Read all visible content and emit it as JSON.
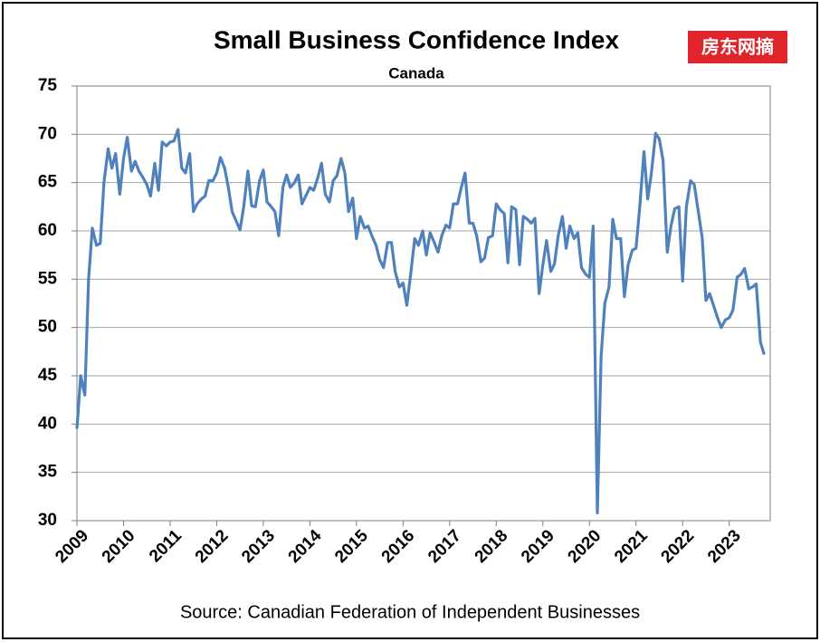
{
  "chart_data": {
    "type": "line",
    "title": "Small Business Confidence Index",
    "subtitle": "Canada",
    "source": "Source: Canadian Federation of Independent Businesses",
    "watermark": "房东网摘",
    "color": "#4f81bd",
    "grid": true,
    "xlim": [
      2009,
      2023.88
    ],
    "xticks": [
      2009,
      2010,
      2011,
      2012,
      2013,
      2014,
      2015,
      2016,
      2017,
      2018,
      2019,
      2020,
      2021,
      2022,
      2023
    ],
    "ylim": [
      30,
      75
    ],
    "yticks": [
      30,
      35,
      40,
      45,
      50,
      55,
      60,
      65,
      70,
      75
    ],
    "x": [
      2009.0,
      2009.08,
      2009.17,
      2009.25,
      2009.33,
      2009.42,
      2009.5,
      2009.58,
      2009.67,
      2009.75,
      2009.83,
      2009.92,
      2010.0,
      2010.08,
      2010.17,
      2010.25,
      2010.33,
      2010.42,
      2010.5,
      2010.58,
      2010.67,
      2010.75,
      2010.83,
      2010.92,
      2011.0,
      2011.08,
      2011.17,
      2011.25,
      2011.33,
      2011.42,
      2011.5,
      2011.58,
      2011.67,
      2011.75,
      2011.83,
      2011.92,
      2012.0,
      2012.08,
      2012.17,
      2012.25,
      2012.33,
      2012.42,
      2012.5,
      2012.58,
      2012.67,
      2012.75,
      2012.83,
      2012.92,
      2013.0,
      2013.08,
      2013.17,
      2013.25,
      2013.33,
      2013.42,
      2013.5,
      2013.58,
      2013.67,
      2013.75,
      2013.83,
      2013.92,
      2014.0,
      2014.08,
      2014.17,
      2014.25,
      2014.33,
      2014.42,
      2014.5,
      2014.58,
      2014.67,
      2014.75,
      2014.83,
      2014.92,
      2015.0,
      2015.08,
      2015.17,
      2015.25,
      2015.33,
      2015.42,
      2015.5,
      2015.58,
      2015.67,
      2015.75,
      2015.83,
      2015.92,
      2016.0,
      2016.08,
      2016.17,
      2016.25,
      2016.33,
      2016.42,
      2016.5,
      2016.58,
      2016.67,
      2016.75,
      2016.83,
      2016.92,
      2017.0,
      2017.08,
      2017.17,
      2017.25,
      2017.33,
      2017.42,
      2017.5,
      2017.58,
      2017.67,
      2017.75,
      2017.83,
      2017.92,
      2018.0,
      2018.08,
      2018.17,
      2018.25,
      2018.33,
      2018.42,
      2018.5,
      2018.58,
      2018.67,
      2018.75,
      2018.83,
      2018.92,
      2019.0,
      2019.08,
      2019.17,
      2019.25,
      2019.33,
      2019.42,
      2019.5,
      2019.58,
      2019.67,
      2019.75,
      2019.83,
      2019.92,
      2020.0,
      2020.08,
      2020.17,
      2020.25,
      2020.33,
      2020.42,
      2020.5,
      2020.58,
      2020.67,
      2020.75,
      2020.83,
      2020.92,
      2021.0,
      2021.08,
      2021.17,
      2021.25,
      2021.33,
      2021.42,
      2021.5,
      2021.58,
      2021.67,
      2021.75,
      2021.83,
      2021.92,
      2022.0,
      2022.08,
      2022.17,
      2022.25,
      2022.33,
      2022.42,
      2022.5,
      2022.58,
      2022.67,
      2022.75,
      2022.83,
      2022.92,
      2023.0,
      2023.08,
      2023.17,
      2023.25,
      2023.33,
      2023.42,
      2023.5,
      2023.58,
      2023.67,
      2023.75
    ],
    "values": [
      39.5,
      45,
      43,
      55,
      60.3,
      58.5,
      58.7,
      65,
      68.5,
      66.5,
      68,
      63.8,
      67.5,
      69.7,
      66.2,
      67.2,
      66.2,
      65.5,
      64.8,
      63.6,
      67,
      64.2,
      69.2,
      68.8,
      69.2,
      69.3,
      70.5,
      66.5,
      66,
      68,
      62,
      62.8,
      63.3,
      63.6,
      65.2,
      65.2,
      66,
      67.6,
      66.5,
      64.5,
      62,
      61,
      60.1,
      62.5,
      66.2,
      62.6,
      62.5,
      65.2,
      66.3,
      63,
      62.5,
      62,
      59.5,
      64.5,
      65.8,
      64.5,
      65,
      65.8,
      62.8,
      63.7,
      64.5,
      64.2,
      65.5,
      67,
      63.8,
      63,
      65.2,
      65.7,
      67.5,
      66,
      62,
      63.4,
      59.2,
      61.5,
      60.3,
      60.5,
      59.5,
      58.5,
      57,
      56.2,
      58.8,
      58.8,
      55.8,
      54.2,
      54.6,
      52.3,
      55.8,
      59.2,
      58.5,
      60,
      57.5,
      59.8,
      58.8,
      57.8,
      59.5,
      60.6,
      60.3,
      62.8,
      62.8,
      64.5,
      66,
      60.8,
      60.8,
      59.5,
      56.8,
      57.2,
      59.3,
      59.5,
      62.8,
      62.2,
      61.8,
      56.7,
      62.5,
      62.2,
      56.5,
      61.5,
      61.2,
      60.8,
      61.3,
      53.5,
      56.5,
      59,
      55.8,
      56.6,
      59.5,
      61.5,
      58.2,
      60.5,
      59.2,
      59.8,
      56.2,
      55.5,
      55.2,
      60.5,
      30.8,
      47,
      52.5,
      54.2,
      61.2,
      59.2,
      59.2,
      53.2,
      56.5,
      58,
      58.2,
      62.5,
      68.2,
      63.3,
      66,
      70.1,
      69.5,
      67.3,
      57.8,
      60.5,
      62.3,
      62.5,
      54.8,
      62.5,
      65.2,
      64.8,
      62.2,
      59.3,
      52.8,
      53.5,
      52.2,
      51,
      50,
      50.8,
      51,
      51.8,
      55.2,
      55.5,
      56.1,
      54,
      54.2,
      54.5,
      48.5,
      47.2
    ]
  }
}
